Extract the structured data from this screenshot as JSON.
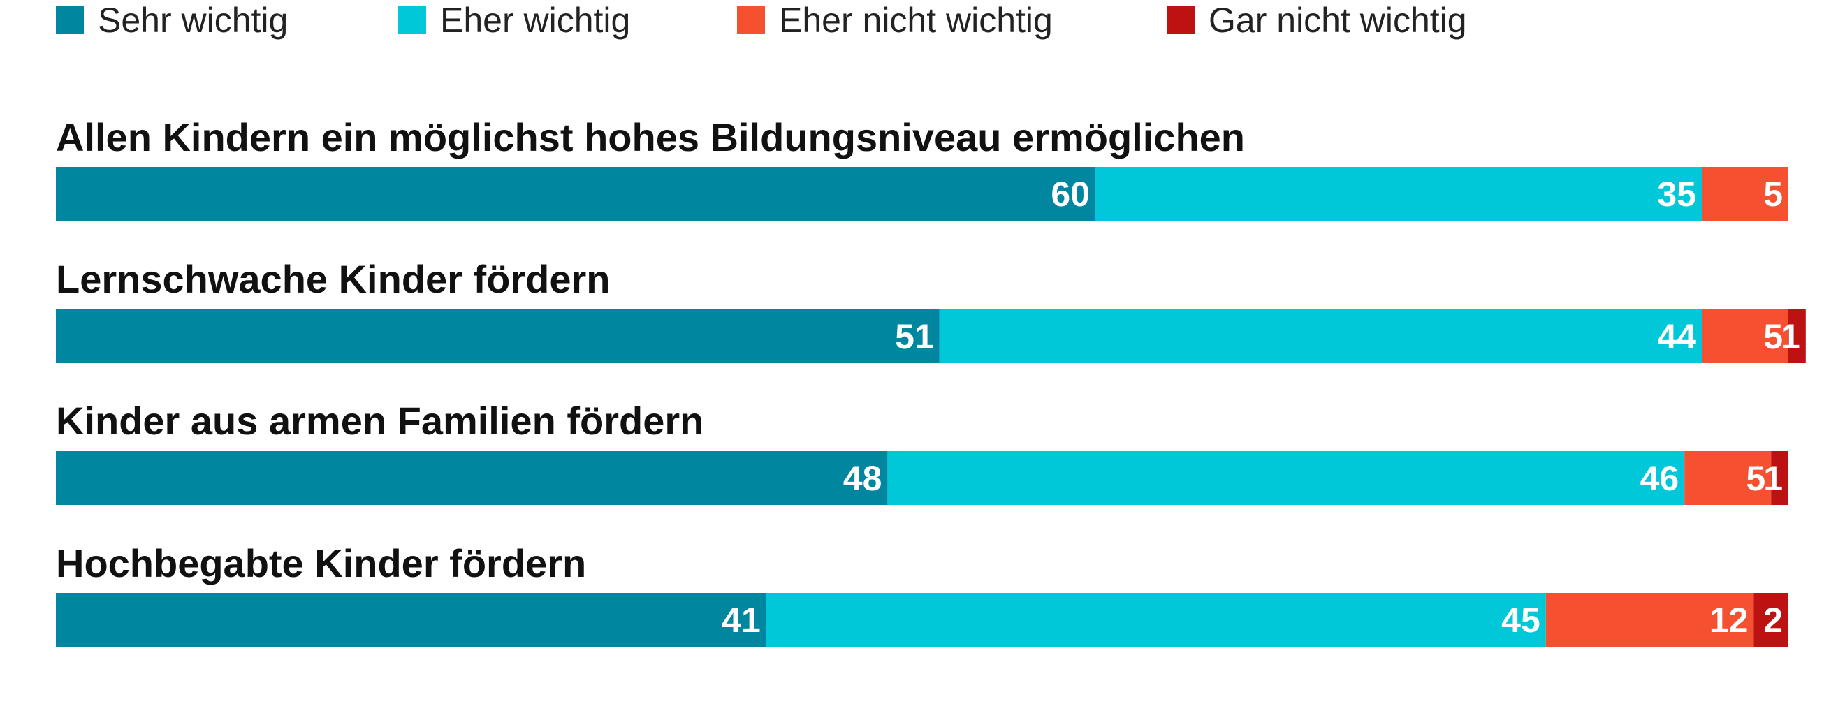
{
  "chart_data": {
    "type": "bar",
    "stacked": true,
    "orientation": "horizontal",
    "legend_position": "top",
    "series": [
      {
        "name": "Sehr wichtig",
        "color": "#00879f"
      },
      {
        "name": "Eher wichtig",
        "color": "#00c8d8"
      },
      {
        "name": "Eher nicht wichtig",
        "color": "#f5502f"
      },
      {
        "name": "Gar nicht wichtig",
        "color": "#bd1212"
      }
    ],
    "categories": [
      {
        "label": "Allen Kindern ein möglichst hohes Bildungsniveau ermöglichen",
        "values": [
          60,
          35,
          5,
          0
        ],
        "labels": [
          "60",
          "35",
          "5",
          ""
        ]
      },
      {
        "label": "Lernschwache Kinder fördern",
        "values": [
          51,
          44,
          5,
          1
        ],
        "labels": [
          "51",
          "44",
          "5",
          "1"
        ]
      },
      {
        "label": "Kinder aus armen Familien fördern",
        "values": [
          48,
          46,
          5,
          1
        ],
        "labels": [
          "48",
          "46",
          "5",
          "1"
        ]
      },
      {
        "label": "Hochbegabte Kinder fördern",
        "values": [
          41,
          45,
          12,
          2
        ],
        "labels": [
          "41",
          "45",
          "12",
          "2"
        ]
      }
    ]
  }
}
